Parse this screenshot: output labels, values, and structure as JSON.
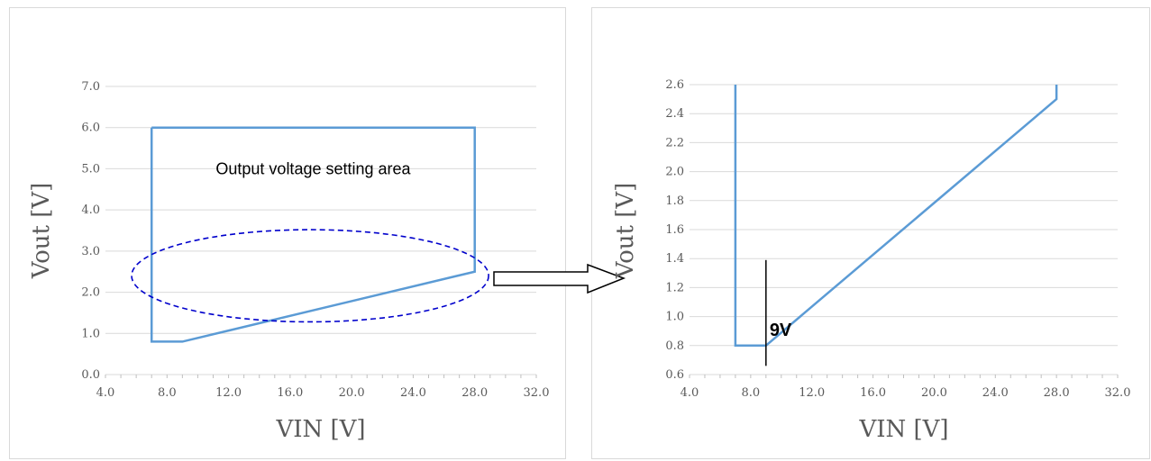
{
  "chart_data": [
    {
      "type": "line",
      "xlabel": "VIN [V]",
      "ylabel": "Vout [V]",
      "xlim": [
        4.0,
        32.0
      ],
      "ylim": [
        0.0,
        7.0
      ],
      "xticks": [
        "4.0",
        "8.0",
        "12.0",
        "16.0",
        "20.0",
        "24.0",
        "28.0",
        "32.0"
      ],
      "yticks": [
        "0.0",
        "1.0",
        "2.0",
        "3.0",
        "4.0",
        "5.0",
        "6.0",
        "7.0"
      ],
      "grid": "horizontal",
      "series": [
        {
          "color": "#5b9bd5",
          "points": [
            [
              7.0,
              6.0
            ],
            [
              7.0,
              0.8
            ],
            [
              9.0,
              0.8
            ],
            [
              28.0,
              2.5
            ],
            [
              28.0,
              6.0
            ],
            [
              7.0,
              6.0
            ]
          ]
        }
      ],
      "annotations": [
        {
          "text": "Output voltage setting area",
          "x": 17.5,
          "y": 5.0
        }
      ],
      "highlight_ellipse": {
        "center": [
          17.3,
          2.4
        ],
        "semi_axes": [
          11.6,
          1.12
        ],
        "color": "#0000cc",
        "style": "dashed"
      }
    },
    {
      "type": "line",
      "xlabel": "VIN [V]",
      "ylabel": "Vout [V]",
      "xlim": [
        4.0,
        32.0
      ],
      "ylim": [
        0.6,
        2.6
      ],
      "xticks": [
        "4.0",
        "8.0",
        "12.0",
        "16.0",
        "20.0",
        "24.0",
        "28.0",
        "32.0"
      ],
      "yticks": [
        "0.6",
        "0.8",
        "1.0",
        "1.2",
        "1.4",
        "1.6",
        "1.8",
        "2.0",
        "2.2",
        "2.4",
        "2.6"
      ],
      "grid": "horizontal",
      "series": [
        {
          "color": "#5b9bd5",
          "points": [
            [
              7.0,
              2.6
            ],
            [
              7.0,
              0.8
            ],
            [
              9.0,
              0.8
            ],
            [
              28.0,
              2.5
            ],
            [
              28.0,
              2.6
            ]
          ]
        }
      ],
      "markers": [
        {
          "text": "9V",
          "x": 9.0,
          "y_from": 0.66,
          "y_to": 1.39
        }
      ]
    }
  ]
}
